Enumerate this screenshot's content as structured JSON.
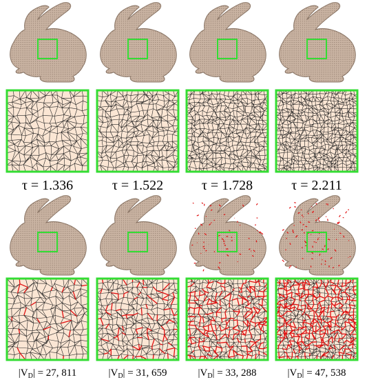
{
  "top_captions": [
    {
      "text": "τ = 1.336"
    },
    {
      "text": "τ = 1.522"
    },
    {
      "text": "τ = 1.728"
    },
    {
      "text": "τ = 2.211"
    }
  ],
  "bottom_captions": [
    {
      "pre": "|V",
      "sub": "D",
      "post": "| = 27, 811"
    },
    {
      "pre": "|V",
      "sub": "D",
      "post": "| = 31, 659"
    },
    {
      "pre": "|V",
      "sub": "D",
      "post": "| = 33, 288"
    },
    {
      "pre": "|V",
      "sub": "D",
      "post": "| = 47, 538"
    }
  ]
}
